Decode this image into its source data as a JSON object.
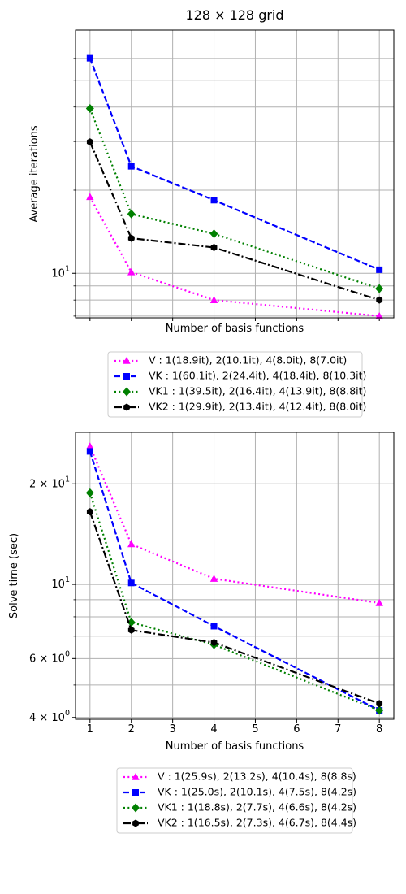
{
  "chart_data": [
    {
      "type": "line",
      "title": "128 × 128 grid",
      "xlabel": "Number of basis functions",
      "ylabel": "Average iterations",
      "yscale": "log",
      "xlim": [
        0.65,
        8.35
      ],
      "ylim": [
        6.9,
        76
      ],
      "grid": true,
      "legend_position": "below",
      "x_tick_labels_visible": false,
      "x_ticks": [
        1,
        2,
        3,
        4,
        5,
        6,
        7,
        8
      ],
      "y_major_ticks": [
        10
      ],
      "y_major_tick_labels": [
        "10^1"
      ],
      "y_minor_ticks": [
        7,
        8,
        9,
        20,
        30,
        40,
        50,
        60
      ],
      "series": [
        {
          "name": "V : 1(18.9it), 2(10.1it), 4(8.0it), 8(7.0it)",
          "color": "#ff00ff",
          "dash": "dotted",
          "marker": "triangle",
          "x": [
            1,
            2,
            4,
            8
          ],
          "y": [
            18.9,
            10.1,
            8.0,
            7.0
          ]
        },
        {
          "name": "VK : 1(60.1it), 2(24.4it), 4(18.4it), 8(10.3it)",
          "color": "#0000ff",
          "dash": "dashed",
          "marker": "square",
          "x": [
            1,
            2,
            4,
            8
          ],
          "y": [
            60.1,
            24.4,
            18.4,
            10.3
          ]
        },
        {
          "name": "VK1 : 1(39.5it), 2(16.4it), 4(13.9it), 8(8.8it)",
          "color": "#008000",
          "dash": "dotted",
          "marker": "diamond",
          "x": [
            1,
            2,
            4,
            8
          ],
          "y": [
            39.5,
            16.4,
            13.9,
            8.8
          ]
        },
        {
          "name": "VK2 : 1(29.9it), 2(13.4it), 4(12.4it), 8(8.0it)",
          "color": "#000000",
          "dash": "dashdot",
          "marker": "hexagon",
          "x": [
            1,
            2,
            4,
            8
          ],
          "y": [
            29.9,
            13.4,
            12.4,
            8.0
          ]
        }
      ]
    },
    {
      "type": "line",
      "title": "",
      "xlabel": "Number of basis functions",
      "ylabel": "Solve time (sec)",
      "yscale": "log",
      "xlim": [
        0.65,
        8.35
      ],
      "ylim": [
        3.95,
        28.5
      ],
      "grid": true,
      "legend_position": "below",
      "x_tick_labels_visible": true,
      "x_ticks": [
        1,
        2,
        3,
        4,
        5,
        6,
        7,
        8
      ],
      "x_tick_labels": [
        "1",
        "2",
        "3",
        "4",
        "5",
        "6",
        "7",
        "8"
      ],
      "y_major_ticks": [
        4,
        6,
        10,
        20
      ],
      "y_major_tick_labels": [
        "4 × 10^0",
        "6 × 10^0",
        "10^1",
        "2 × 10^1"
      ],
      "y_minor_ticks": [
        5,
        7,
        8,
        9
      ],
      "series": [
        {
          "name": "V : 1(25.9s), 2(13.2s), 4(10.4s), 8(8.8s)",
          "color": "#ff00ff",
          "dash": "dotted",
          "marker": "triangle",
          "x": [
            1,
            2,
            4,
            8
          ],
          "y": [
            25.9,
            13.2,
            10.4,
            8.8
          ]
        },
        {
          "name": "VK : 1(25.0s), 2(10.1s), 4(7.5s), 8(4.2s)",
          "color": "#0000ff",
          "dash": "dashed",
          "marker": "square",
          "x": [
            1,
            2,
            4,
            8
          ],
          "y": [
            25.0,
            10.1,
            7.5,
            4.2
          ]
        },
        {
          "name": "VK1 : 1(18.8s), 2(7.7s), 4(6.6s), 8(4.2s)",
          "color": "#008000",
          "dash": "dotted",
          "marker": "diamond",
          "x": [
            1,
            2,
            4,
            8
          ],
          "y": [
            18.8,
            7.7,
            6.6,
            4.2
          ]
        },
        {
          "name": "VK2 : 1(16.5s), 2(7.3s), 4(6.7s), 8(4.4s)",
          "color": "#000000",
          "dash": "dashdot",
          "marker": "hexagon",
          "x": [
            1,
            2,
            4,
            8
          ],
          "y": [
            16.5,
            7.3,
            6.7,
            4.4
          ]
        }
      ]
    }
  ]
}
